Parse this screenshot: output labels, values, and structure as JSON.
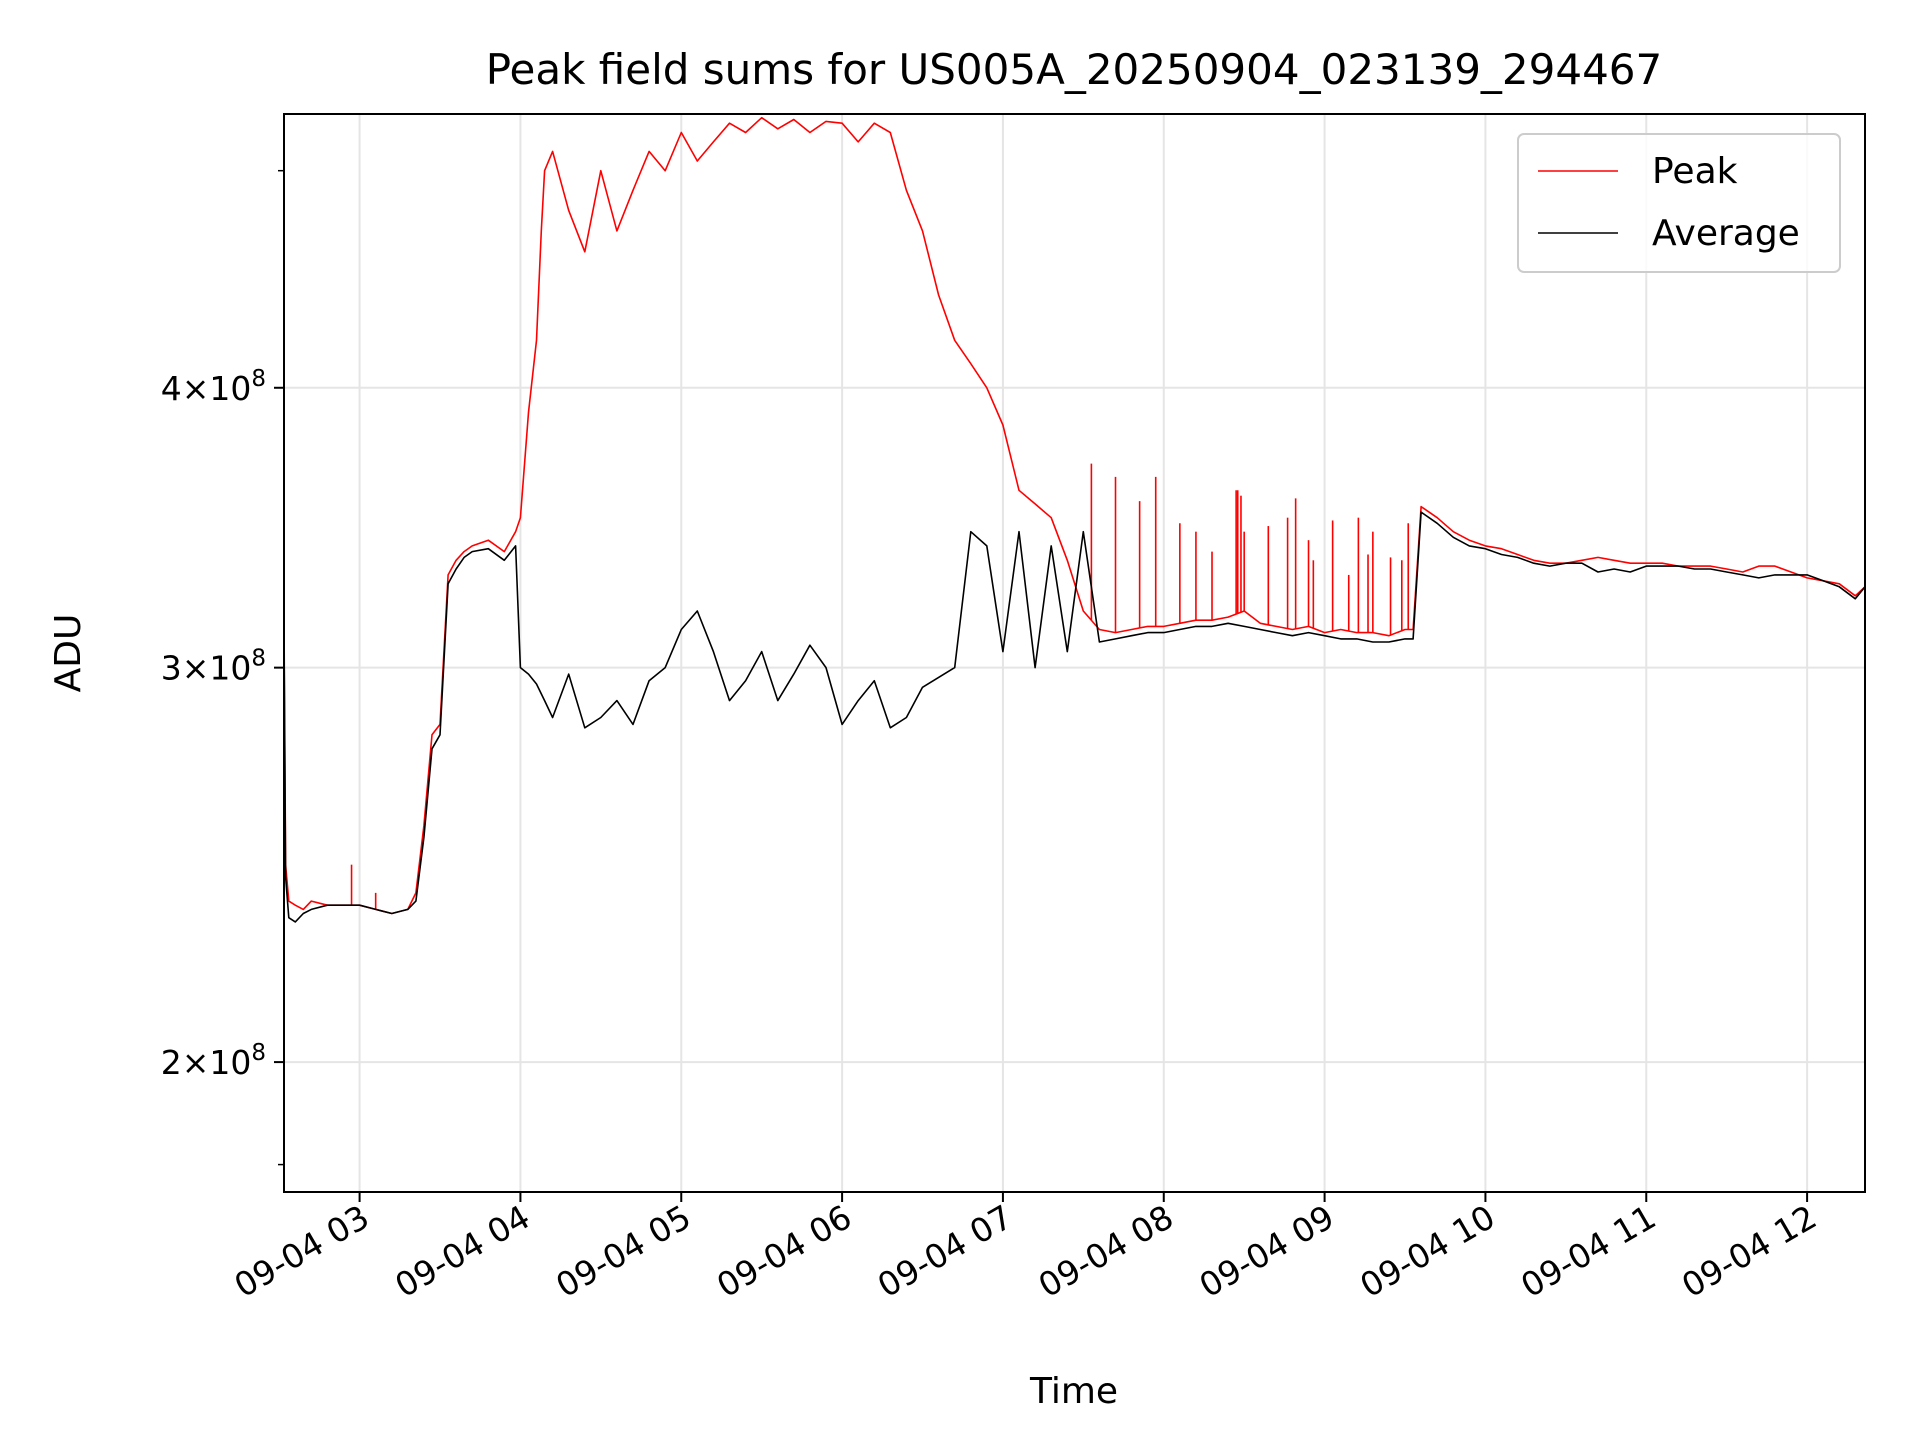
{
  "chart_data": {
    "type": "line",
    "title": "Peak field sums for US005A_20250904_023139_294467",
    "xlabel": "Time",
    "ylabel": "ADU",
    "yscale": "log",
    "grid": true,
    "legend_position": "top-right",
    "xlim": [
      2.53,
      12.36
    ],
    "ylim": [
      175000000,
      530000000
    ],
    "x_ticks": [
      {
        "value": 3,
        "label": "09-04 03"
      },
      {
        "value": 4,
        "label": "09-04 04"
      },
      {
        "value": 5,
        "label": "09-04 05"
      },
      {
        "value": 6,
        "label": "09-04 06"
      },
      {
        "value": 7,
        "label": "09-04 07"
      },
      {
        "value": 8,
        "label": "09-04 08"
      },
      {
        "value": 9,
        "label": "09-04 09"
      },
      {
        "value": 10,
        "label": "09-04 10"
      },
      {
        "value": 11,
        "label": "09-04 11"
      },
      {
        "value": 12,
        "label": "09-04 12"
      }
    ],
    "y_ticks": [
      {
        "value": 200000000,
        "mantissa": "2",
        "exponent": "8"
      },
      {
        "value": 300000000,
        "mantissa": "3",
        "exponent": "8"
      },
      {
        "value": 400000000,
        "mantissa": "4",
        "exponent": "8"
      }
    ],
    "x_unit_note": "hours of 2025-09-04",
    "series": [
      {
        "name": "Peak",
        "color": "#ff0000",
        "x": [
          2.53,
          2.54,
          2.56,
          2.6,
          2.65,
          2.7,
          2.8,
          2.9,
          3.0,
          3.1,
          3.2,
          3.3,
          3.35,
          3.4,
          3.45,
          3.5,
          3.55,
          3.6,
          3.65,
          3.7,
          3.8,
          3.9,
          3.97,
          4.0,
          4.05,
          4.1,
          4.13,
          4.15,
          4.2,
          4.3,
          4.4,
          4.5,
          4.6,
          4.7,
          4.8,
          4.9,
          5.0,
          5.1,
          5.2,
          5.3,
          5.4,
          5.5,
          5.6,
          5.7,
          5.8,
          5.9,
          6.0,
          6.1,
          6.2,
          6.3,
          6.4,
          6.5,
          6.6,
          6.7,
          6.8,
          6.9,
          7.0,
          7.1,
          7.2,
          7.3,
          7.4,
          7.5,
          7.6,
          7.7,
          7.8,
          7.9,
          8.0,
          8.1,
          8.2,
          8.3,
          8.4,
          8.5,
          8.6,
          8.7,
          8.8,
          8.9,
          9.0,
          9.1,
          9.2,
          9.3,
          9.4,
          9.5,
          9.55,
          9.6,
          9.7,
          9.8,
          9.9,
          10.0,
          10.1,
          10.2,
          10.3,
          10.4,
          10.5,
          10.6,
          10.7,
          10.8,
          10.9,
          11.0,
          11.1,
          11.2,
          11.3,
          11.4,
          11.5,
          11.6,
          11.7,
          11.8,
          11.9,
          12.0,
          12.1,
          12.2,
          12.3,
          12.36
        ],
        "y": [
          315000000,
          245000000,
          236000000,
          235000000,
          234000000,
          236000000,
          235000000,
          235000000,
          235000000,
          234000000,
          233000000,
          234000000,
          238000000,
          255000000,
          280000000,
          283000000,
          330000000,
          335000000,
          338000000,
          340000000,
          342000000,
          338000000,
          345000000,
          350000000,
          390000000,
          420000000,
          470000000,
          500000000,
          510000000,
          480000000,
          460000000,
          500000000,
          470000000,
          490000000,
          510000000,
          500000000,
          520000000,
          505000000,
          515000000,
          525000000,
          520000000,
          528000000,
          522000000,
          527000000,
          520000000,
          526000000,
          525000000,
          515000000,
          525000000,
          520000000,
          490000000,
          470000000,
          440000000,
          420000000,
          410000000,
          400000000,
          385000000,
          360000000,
          355000000,
          350000000,
          335000000,
          318000000,
          312000000,
          311000000,
          312000000,
          313000000,
          313000000,
          314000000,
          315000000,
          315000000,
          316000000,
          318000000,
          314000000,
          313000000,
          312000000,
          313000000,
          311000000,
          312000000,
          311000000,
          311000000,
          310000000,
          312000000,
          312000000,
          354000000,
          350000000,
          345000000,
          342000000,
          340000000,
          339000000,
          337000000,
          335000000,
          334000000,
          334000000,
          335000000,
          336000000,
          335000000,
          334000000,
          334000000,
          334000000,
          333000000,
          333000000,
          333000000,
          332000000,
          331000000,
          333000000,
          333000000,
          331000000,
          329000000,
          328000000,
          327000000,
          323000000,
          326000000
        ],
        "spikes": [
          {
            "x": 2.95,
            "y": 245000000
          },
          {
            "x": 3.1,
            "y": 238000000
          },
          {
            "x": 7.55,
            "y": 370000000
          },
          {
            "x": 7.7,
            "y": 365000000
          },
          {
            "x": 7.85,
            "y": 356000000
          },
          {
            "x": 7.95,
            "y": 365000000
          },
          {
            "x": 8.1,
            "y": 348000000
          },
          {
            "x": 8.3,
            "y": 338000000
          },
          {
            "x": 8.45,
            "y": 360000000
          },
          {
            "x": 8.5,
            "y": 345000000
          },
          {
            "x": 8.65,
            "y": 347000000
          },
          {
            "x": 8.9,
            "y": 342000000
          },
          {
            "x": 9.05,
            "y": 349000000
          },
          {
            "x": 9.15,
            "y": 330000000
          },
          {
            "x": 9.3,
            "y": 345000000
          },
          {
            "x": 9.48,
            "y": 335000000
          },
          {
            "x": 8.2,
            "y": 345000000
          },
          {
            "x": 8.77,
            "y": 350000000
          },
          {
            "x": 8.82,
            "y": 357000000
          },
          {
            "x": 8.93,
            "y": 335000000
          },
          {
            "x": 9.21,
            "y": 350000000
          },
          {
            "x": 9.27,
            "y": 337000000
          },
          {
            "x": 9.41,
            "y": 336000000
          },
          {
            "x": 9.52,
            "y": 348000000
          },
          {
            "x": 8.48,
            "y": 358000000
          },
          {
            "x": 8.46,
            "y": 360000000
          }
        ]
      },
      {
        "name": "Average",
        "color": "#000000",
        "x": [
          2.53,
          2.54,
          2.56,
          2.6,
          2.65,
          2.7,
          2.8,
          2.9,
          3.0,
          3.1,
          3.2,
          3.3,
          3.35,
          3.4,
          3.45,
          3.5,
          3.55,
          3.6,
          3.65,
          3.7,
          3.8,
          3.9,
          3.97,
          4.0,
          4.05,
          4.1,
          4.15,
          4.2,
          4.3,
          4.4,
          4.5,
          4.6,
          4.7,
          4.8,
          4.9,
          5.0,
          5.1,
          5.2,
          5.3,
          5.4,
          5.5,
          5.6,
          5.7,
          5.8,
          5.9,
          6.0,
          6.1,
          6.2,
          6.3,
          6.4,
          6.5,
          6.6,
          6.7,
          6.8,
          6.9,
          7.0,
          7.1,
          7.2,
          7.3,
          7.4,
          7.5,
          7.6,
          7.7,
          7.8,
          7.9,
          8.0,
          8.1,
          8.2,
          8.3,
          8.4,
          8.5,
          8.6,
          8.7,
          8.8,
          8.9,
          9.0,
          9.1,
          9.2,
          9.3,
          9.4,
          9.5,
          9.55,
          9.6,
          9.7,
          9.8,
          9.9,
          10.0,
          10.1,
          10.2,
          10.3,
          10.4,
          10.5,
          10.6,
          10.7,
          10.8,
          10.9,
          11.0,
          11.1,
          11.2,
          11.3,
          11.4,
          11.5,
          11.6,
          11.7,
          11.8,
          11.9,
          12.0,
          12.1,
          12.2,
          12.3,
          12.36
        ],
        "y": [
          310000000,
          242000000,
          232000000,
          231000000,
          233000000,
          234000000,
          235000000,
          235000000,
          235000000,
          234000000,
          233000000,
          234000000,
          236000000,
          252000000,
          276000000,
          280000000,
          327000000,
          332000000,
          336000000,
          338000000,
          339000000,
          335000000,
          340000000,
          300000000,
          298000000,
          295000000,
          290000000,
          285000000,
          298000000,
          282000000,
          285000000,
          290000000,
          283000000,
          296000000,
          300000000,
          312000000,
          318000000,
          305000000,
          290000000,
          296000000,
          305000000,
          290000000,
          298000000,
          307000000,
          300000000,
          283000000,
          290000000,
          296000000,
          282000000,
          285000000,
          294000000,
          297000000,
          300000000,
          345000000,
          340000000,
          305000000,
          345000000,
          300000000,
          340000000,
          305000000,
          345000000,
          308000000,
          309000000,
          310000000,
          311000000,
          311000000,
          312000000,
          313000000,
          313000000,
          314000000,
          313000000,
          312000000,
          311000000,
          310000000,
          311000000,
          310000000,
          309000000,
          309000000,
          308000000,
          308000000,
          309000000,
          309000000,
          352000000,
          348000000,
          343000000,
          340000000,
          339000000,
          337000000,
          336000000,
          334000000,
          333000000,
          334000000,
          334000000,
          331000000,
          332000000,
          331000000,
          333000000,
          333000000,
          333000000,
          332000000,
          332000000,
          331000000,
          330000000,
          329000000,
          330000000,
          330000000,
          330000000,
          328000000,
          326000000,
          322000000,
          326000000
        ]
      }
    ]
  }
}
